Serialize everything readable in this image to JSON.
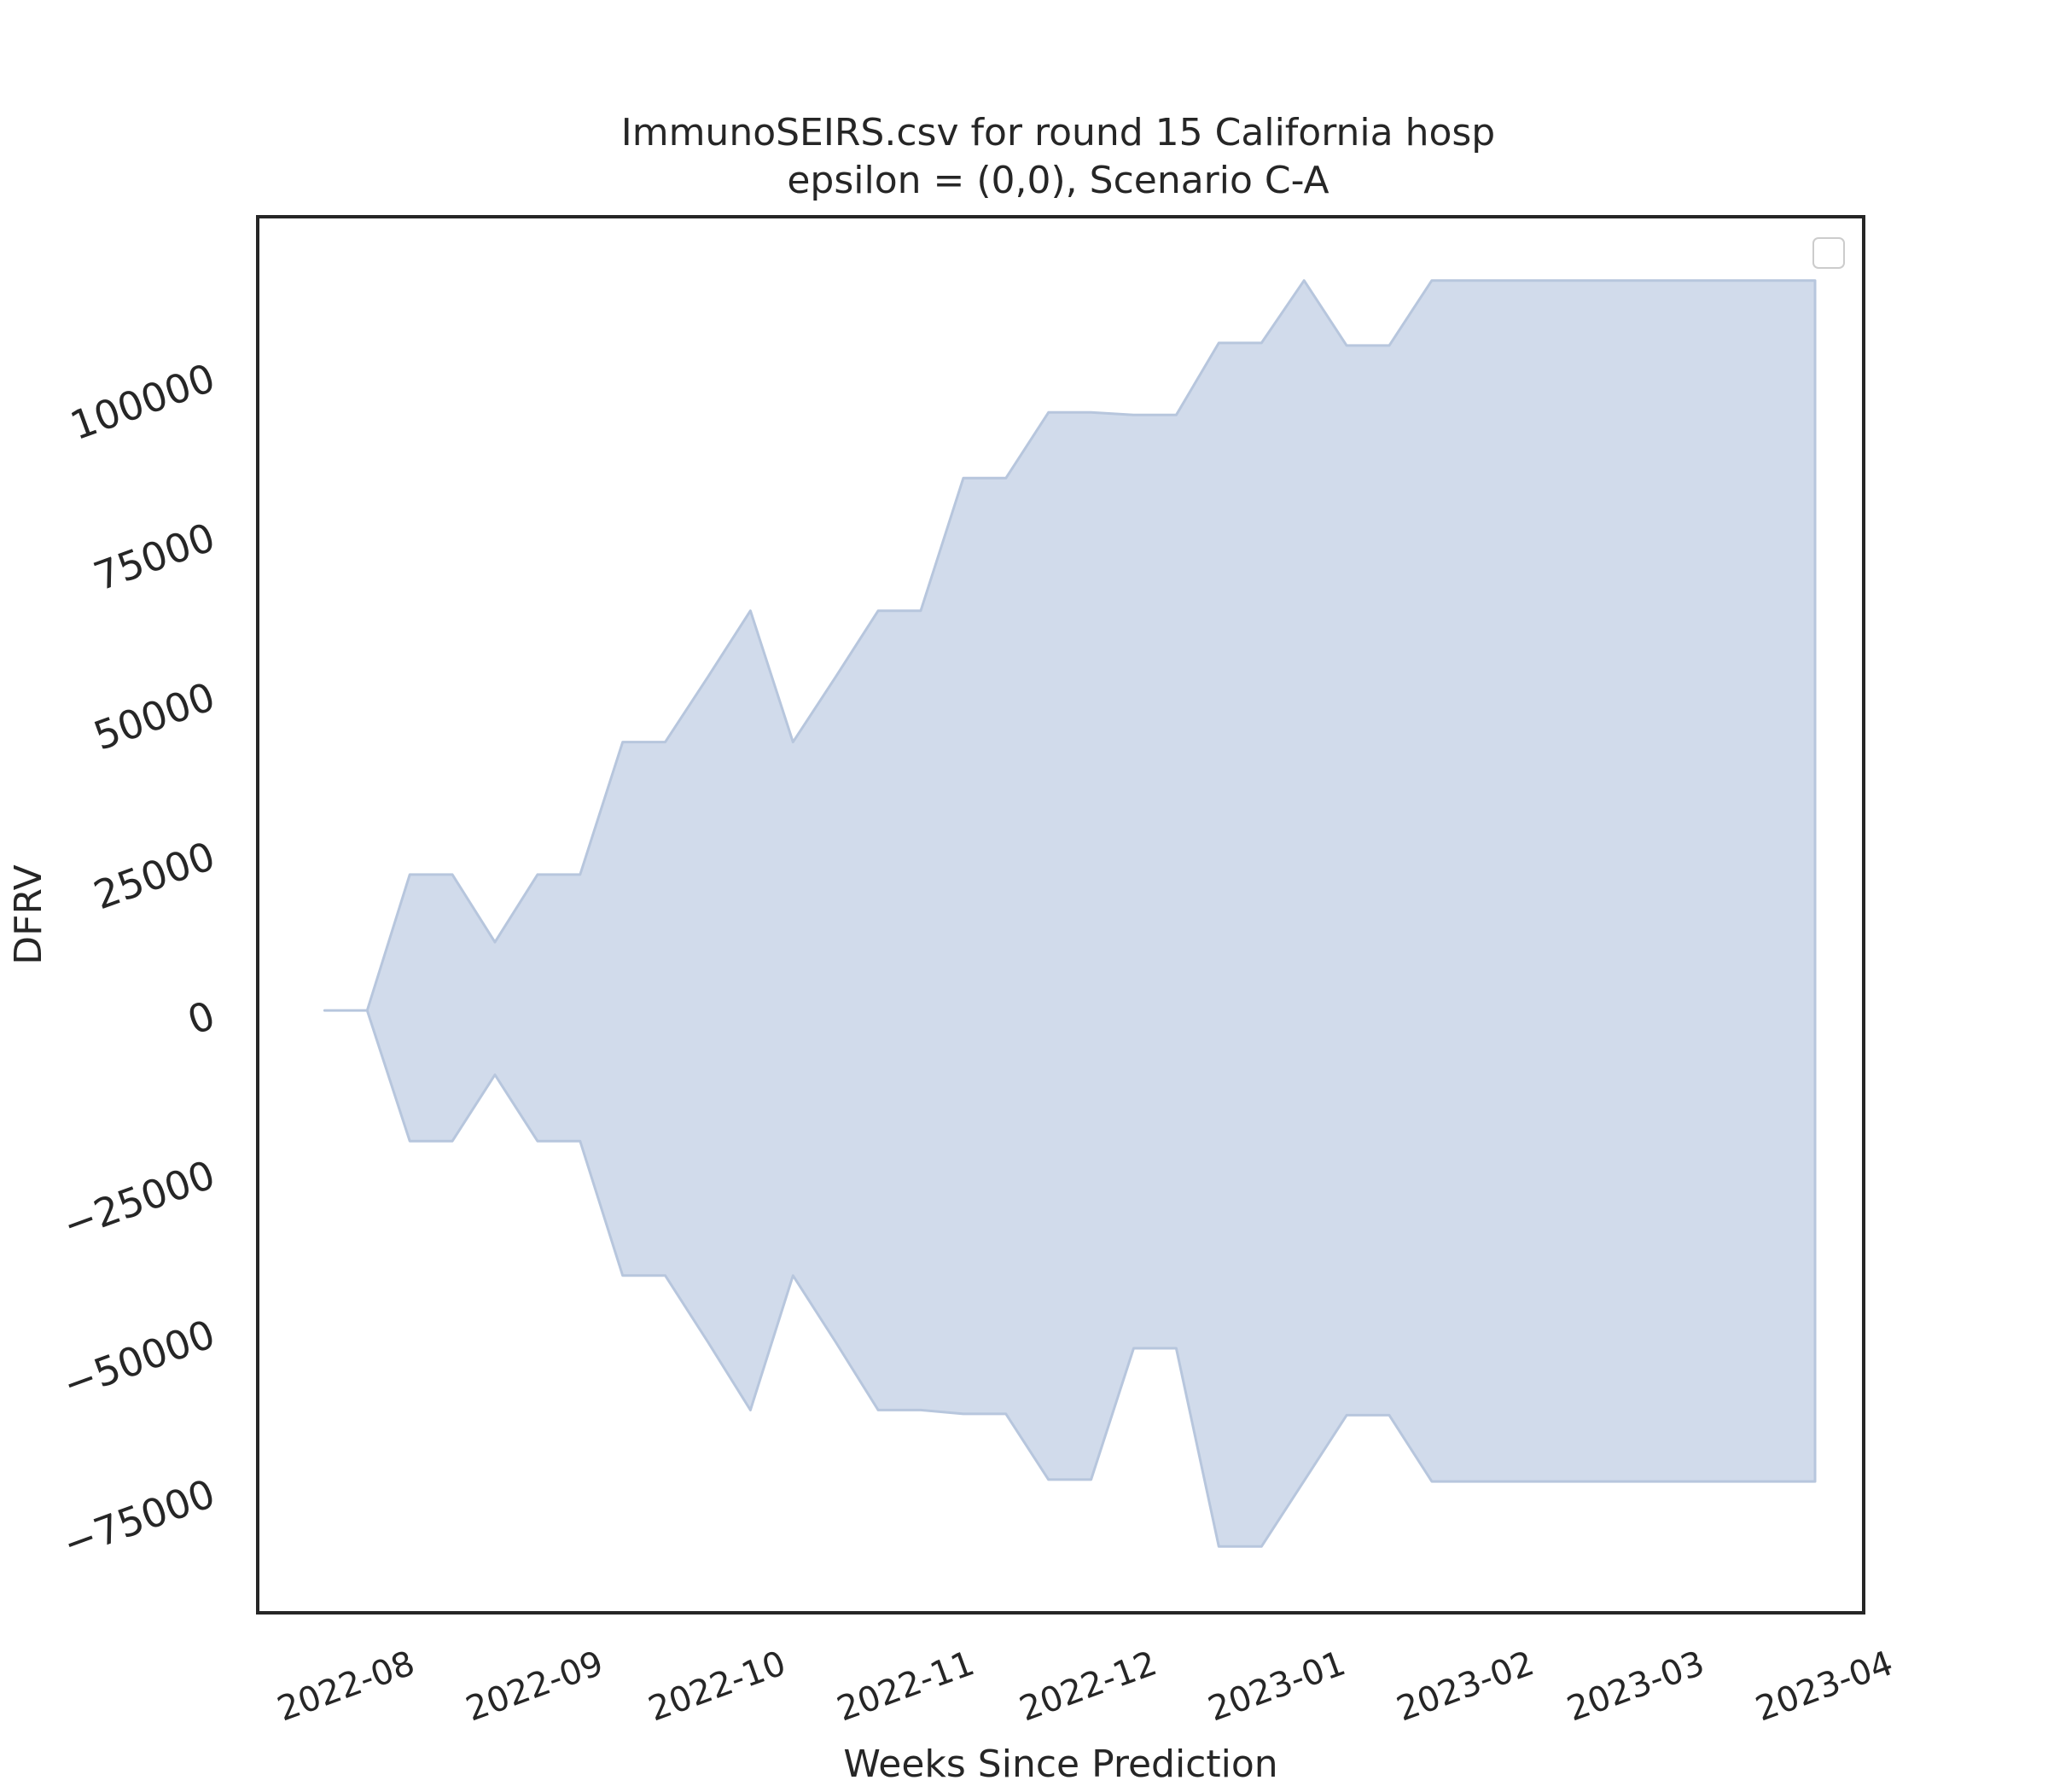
{
  "chart_data": {
    "type": "area",
    "title_line1": "ImmunoSEIRS.csv for round 15 California hosp",
    "title_line2": "epsilon = (0,0), Scenario C-A",
    "xlabel": "Weeks Since Prediction",
    "ylabel": "DFRV",
    "x_tick_labels": [
      "2022-08",
      "2022-09",
      "2022-10",
      "2022-11",
      "2022-12",
      "2023-01",
      "2023-02",
      "2023-03",
      "2023-04"
    ],
    "y_tick_labels": [
      "−75000",
      "−50000",
      "−25000",
      "0",
      "25000",
      "50000",
      "75000",
      "100000"
    ],
    "y_ticks": [
      -75000,
      -50000,
      -25000,
      0,
      25000,
      50000,
      75000,
      100000
    ],
    "ylim": [
      -94000,
      125000
    ],
    "xlim": [
      "2022-07-12",
      "2023-04-02"
    ],
    "legend": "top-right",
    "legend_entries": [],
    "grid": false,
    "fill_color": "#d1dbeb",
    "edge_color": "#b7c6dd",
    "x": [
      "2022-07-23",
      "2022-07-30",
      "2022-08-06",
      "2022-08-13",
      "2022-08-20",
      "2022-08-27",
      "2022-09-03",
      "2022-09-10",
      "2022-09-17",
      "2022-09-24",
      "2022-10-01",
      "2022-10-08",
      "2022-10-15",
      "2022-10-22",
      "2022-10-29",
      "2022-11-05",
      "2022-11-12",
      "2022-11-19",
      "2022-11-26",
      "2022-12-03",
      "2022-12-10",
      "2022-12-17",
      "2022-12-24",
      "2022-12-31",
      "2023-01-07",
      "2023-01-14",
      "2023-01-21",
      "2023-01-28",
      "2023-02-04",
      "2023-02-11",
      "2023-02-18",
      "2023-02-25",
      "2023-03-04",
      "2023-03-11",
      "2023-03-18",
      "2023-03-25"
    ],
    "series": [
      {
        "upper": [
          500,
          500,
          21800,
          21800,
          11200,
          21800,
          21800,
          42600,
          42600,
          52800,
          63200,
          42600,
          52800,
          63200,
          63200,
          84000,
          84000,
          94300,
          94300,
          93900,
          93900,
          105200,
          105200,
          115000,
          104800,
          104800,
          115000,
          115000,
          115000,
          115000,
          115000,
          115000,
          115000,
          115000,
          115000,
          115000
        ],
        "lower": [
          500,
          500,
          -20000,
          -20000,
          -9600,
          -20000,
          -20000,
          -41100,
          -41100,
          -51500,
          -62200,
          -41100,
          -51500,
          -62200,
          -62200,
          -62800,
          -62800,
          -73100,
          -73100,
          -52500,
          -52500,
          -83600,
          -83600,
          -73300,
          -63000,
          -63000,
          -73400,
          -73400,
          -73400,
          -73400,
          -73400,
          -73400,
          -73400,
          -73400,
          -73400,
          -73400
        ]
      }
    ]
  }
}
